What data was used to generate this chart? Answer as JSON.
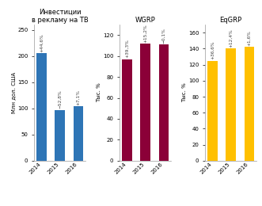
{
  "chart1": {
    "title": "Инвестиции\nв рекламу на ТВ",
    "ylabel": "Млн дол. США",
    "categories": [
      "2014",
      "2015",
      "2016"
    ],
    "values": [
      205,
      97,
      104
    ],
    "color": "#2e75b6",
    "labels": [
      "+44,6%",
      "−52,8%",
      "+7,1%"
    ],
    "ylim": [
      0,
      260
    ],
    "yticks": [
      0,
      50,
      100,
      150,
      200,
      250
    ]
  },
  "chart2": {
    "title": "WGRP",
    "ylabel": "Тыс. %",
    "categories": [
      "2014",
      "2015",
      "2016"
    ],
    "values": [
      97,
      112,
      111
    ],
    "color": "#8b0038",
    "labels": [
      "+39,3%",
      "+15,2%",
      "−0,1%"
    ],
    "ylim": [
      0,
      130
    ],
    "yticks": [
      0,
      20,
      40,
      60,
      80,
      100,
      120
    ]
  },
  "chart3": {
    "title": "EqGRP",
    "ylabel": "Тыс. %",
    "categories": [
      "2014",
      "2015",
      "2016"
    ],
    "values": [
      125,
      140,
      142
    ],
    "color": "#ffc000",
    "labels": [
      "+36,6%",
      "+12,4%",
      "+1,6%"
    ],
    "ylim": [
      0,
      170
    ],
    "yticks": [
      0,
      20,
      40,
      60,
      80,
      100,
      120,
      140,
      160
    ]
  }
}
